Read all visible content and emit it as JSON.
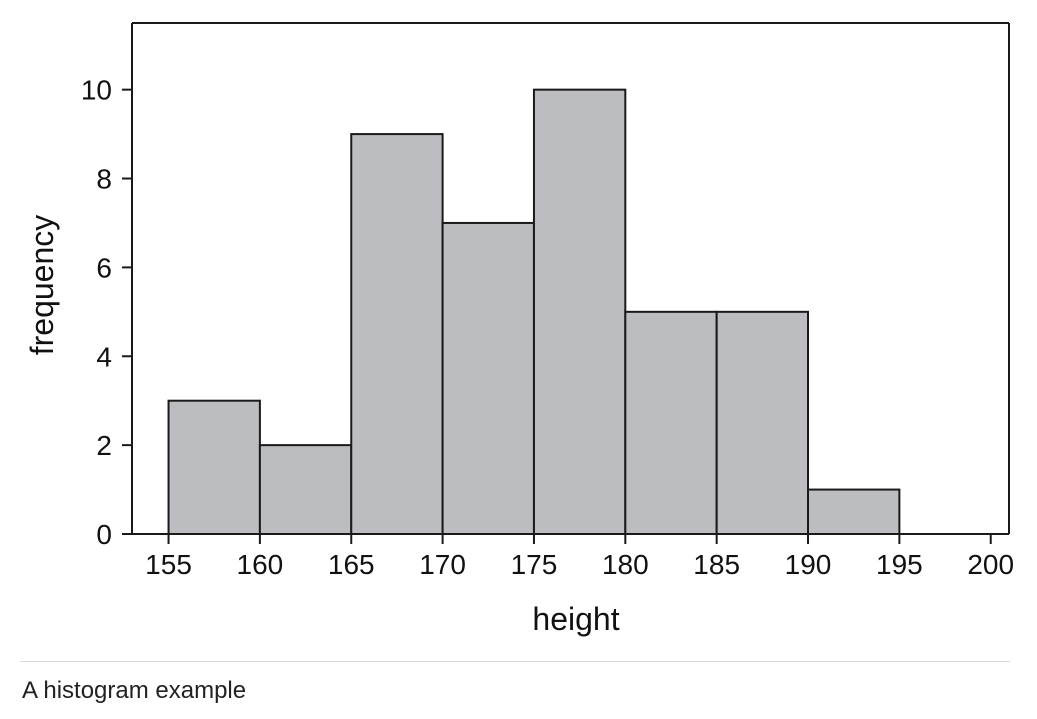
{
  "chart_data": {
    "type": "bar",
    "subtype": "histogram",
    "bins": [
      {
        "start": 155,
        "end": 160,
        "count": 3
      },
      {
        "start": 160,
        "end": 165,
        "count": 2
      },
      {
        "start": 165,
        "end": 170,
        "count": 9
      },
      {
        "start": 170,
        "end": 175,
        "count": 7
      },
      {
        "start": 175,
        "end": 180,
        "count": 10
      },
      {
        "start": 180,
        "end": 185,
        "count": 5
      },
      {
        "start": 185,
        "end": 190,
        "count": 5
      },
      {
        "start": 190,
        "end": 195,
        "count": 1
      }
    ],
    "xlabel": "height",
    "ylabel": "frequency",
    "xlim": [
      153,
      201
    ],
    "ylim": [
      0,
      11.5
    ],
    "xticks": [
      "155",
      "160",
      "165",
      "170",
      "175",
      "180",
      "185",
      "190",
      "195",
      "200"
    ],
    "yticks": [
      "0",
      "2",
      "4",
      "6",
      "8",
      "10"
    ],
    "grid": false,
    "legend": "none",
    "colors": {
      "bar_fill": "#bcbdc1",
      "bar_stroke": "#1a1a1a",
      "axis": "#1a1a1a"
    }
  },
  "caption": "A histogram example"
}
